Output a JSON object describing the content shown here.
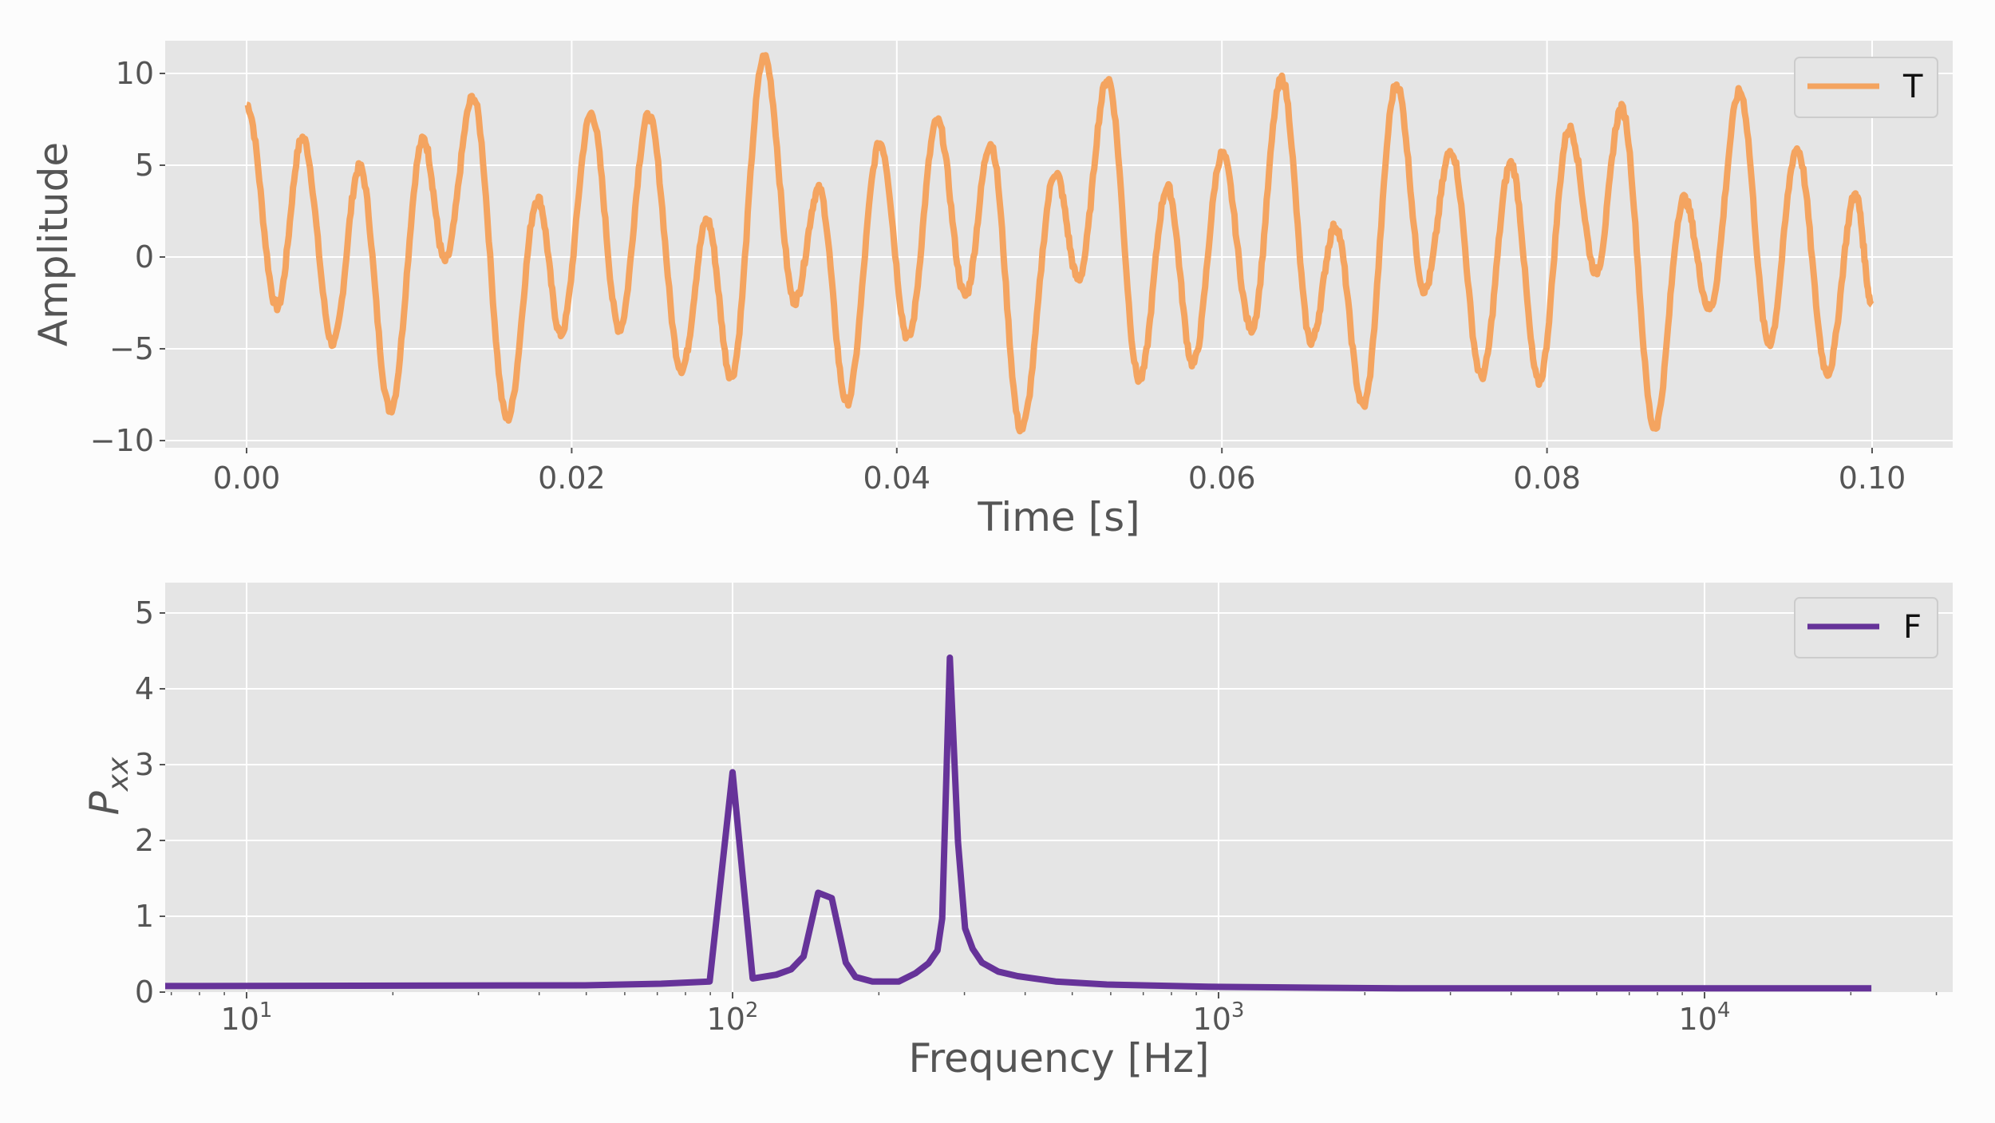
{
  "chart_data": [
    {
      "type": "line",
      "xlabel": "Time [s]",
      "ylabel": "Amplitude",
      "xlim": [
        -0.005,
        0.105
      ],
      "ylim": [
        -10.5,
        11.5
      ],
      "xticks": [
        0.0,
        0.02,
        0.04,
        0.06,
        0.08,
        0.1
      ],
      "xtick_labels": [
        "0.00",
        "0.02",
        "0.04",
        "0.06",
        "0.08",
        "0.10"
      ],
      "yticks": [
        -10,
        -5,
        0,
        5,
        10
      ],
      "ytick_labels": [
        "−10",
        "−5",
        "0",
        "5",
        "10"
      ],
      "grid": true,
      "legend_position": "top-right",
      "series": [
        {
          "name": "T",
          "color": "#f4a460",
          "x": [
            0.0,
            0.00188,
            0.00344,
            0.00532,
            0.00696,
            0.00884,
            0.01088,
            0.01221,
            0.01393,
            0.01604,
            0.01792,
            0.01933,
            0.02121,
            0.02293,
            0.02473,
            0.02676,
            0.02833,
            0.02981,
            0.03185,
            0.03372,
            0.03521,
            0.03693,
            0.03897,
            0.04069,
            0.04249,
            0.04421,
            0.04577,
            0.04765,
            0.04977,
            0.05117,
            0.05297,
            0.05493,
            0.05665,
            0.05822,
            0.06002,
            0.06182,
            0.06369,
            0.06549,
            0.06698,
            0.0687,
            0.07074,
            0.07246,
            0.0741,
            0.07598,
            0.07778,
            0.0795,
            0.08138,
            0.08302,
            0.08459,
            0.08662,
            0.08842,
            0.09,
            0.09186,
            0.09366,
            0.09538,
            0.09726,
            0.09898,
            0.1
          ],
          "y": [
            8.3,
            -2.7,
            6.5,
            -4.7,
            4.9,
            -8.3,
            6.4,
            -0.2,
            8.7,
            -8.8,
            3.2,
            -4.2,
            7.8,
            -3.9,
            7.7,
            -6.1,
            2.0,
            -6.5,
            10.9,
            -2.4,
            3.7,
            -7.9,
            6.2,
            -4.4,
            7.4,
            -2.1,
            6.2,
            -9.4,
            4.6,
            -1.2,
            9.7,
            -6.7,
            3.8,
            -5.8,
            5.6,
            -3.9,
            9.7,
            -4.6,
            1.7,
            -8.1,
            9.4,
            -1.8,
            5.8,
            -6.5,
            5.1,
            -6.8,
            7.0,
            -0.8,
            8.1,
            -9.3,
            3.2,
            -2.8,
            9.0,
            -4.7,
            5.9,
            -6.3,
            3.4,
            -2.6
          ]
        }
      ]
    },
    {
      "type": "line",
      "xlabel": "Frequency [Hz]",
      "ylabel": "P_xx",
      "xscale": "log",
      "xlim": [
        6.8,
        32400
      ],
      "ylim": [
        0,
        5.4
      ],
      "xticks": [
        10,
        100,
        1000,
        10000
      ],
      "xtick_labels": [
        "10^1",
        "10^2",
        "10^3",
        "10^4"
      ],
      "yticks": [
        0,
        1,
        2,
        3,
        4,
        5
      ],
      "ytick_labels": [
        "0",
        "1",
        "2",
        "3",
        "4",
        "5"
      ],
      "grid": true,
      "legend_position": "top-right",
      "series": [
        {
          "name": "F",
          "color": "#663399",
          "x": [
            6.8,
            49.7,
            71.3,
            89.7,
            100,
            110,
            123,
            132,
            140,
            150,
            160,
            171,
            179,
            194,
            220,
            238,
            253,
            264,
            270,
            280,
            291,
            301,
            312,
            326,
            352,
            386,
            462,
            589,
            952,
            2353,
            22050
          ],
          "y": [
            0.08,
            0.09,
            0.11,
            0.14,
            2.9,
            0.18,
            0.23,
            0.3,
            0.47,
            1.31,
            1.24,
            0.39,
            0.2,
            0.14,
            0.14,
            0.25,
            0.38,
            0.55,
            0.97,
            4.41,
            1.98,
            0.84,
            0.57,
            0.39,
            0.27,
            0.21,
            0.14,
            0.1,
            0.07,
            0.05,
            0.05
          ]
        }
      ]
    }
  ]
}
